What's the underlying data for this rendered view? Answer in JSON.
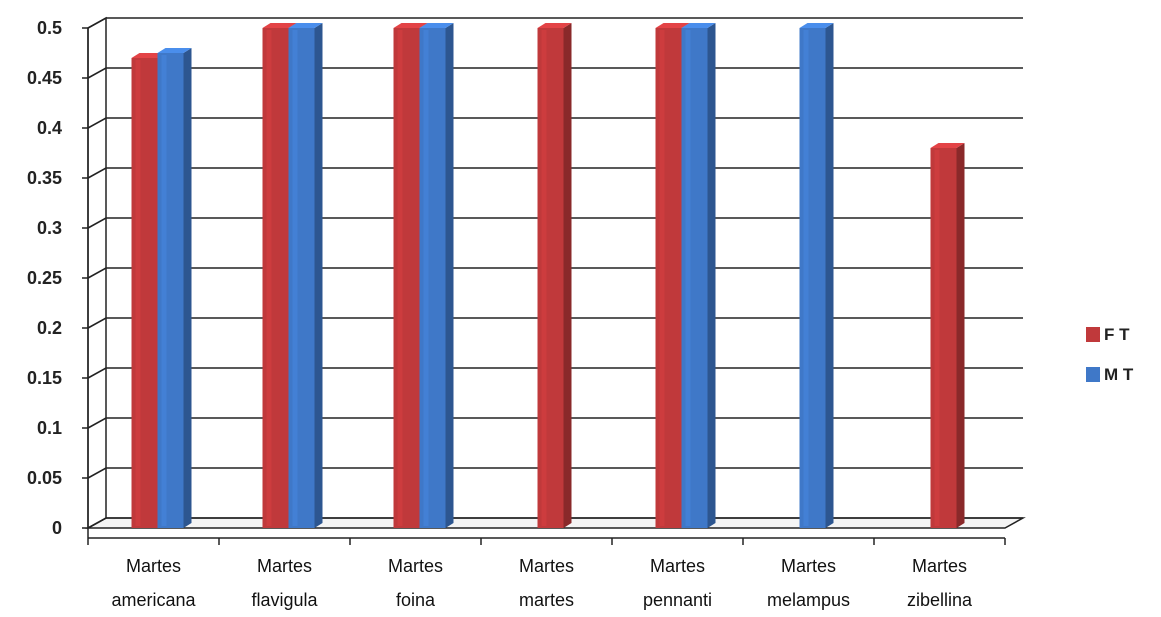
{
  "chart_data": {
    "type": "bar",
    "categories": [
      [
        "Martes",
        "americana"
      ],
      [
        "Martes",
        "flavigula"
      ],
      [
        "Martes",
        "foina"
      ],
      [
        "Martes",
        "martes"
      ],
      [
        "Martes",
        "pennanti"
      ],
      [
        "Martes",
        "melampus"
      ],
      [
        "Martes",
        "zibellina"
      ]
    ],
    "series": [
      {
        "name": "F T",
        "color": "#c0393b",
        "values": [
          0.47,
          0.5,
          0.5,
          0.5,
          0.5,
          null,
          0.38
        ]
      },
      {
        "name": "M T",
        "color": "#3f78c8",
        "values": [
          0.475,
          0.5,
          0.5,
          null,
          0.5,
          0.5,
          null
        ]
      }
    ],
    "ylim": [
      0,
      0.5
    ],
    "yticks": [
      "0",
      "0.05",
      "0.1",
      "0.15",
      "0.2",
      "0.25",
      "0.3",
      "0.35",
      "0.4",
      "0.45",
      "0.5"
    ],
    "grid": true,
    "legend_position": "right",
    "style": "3d-clustered-column"
  }
}
